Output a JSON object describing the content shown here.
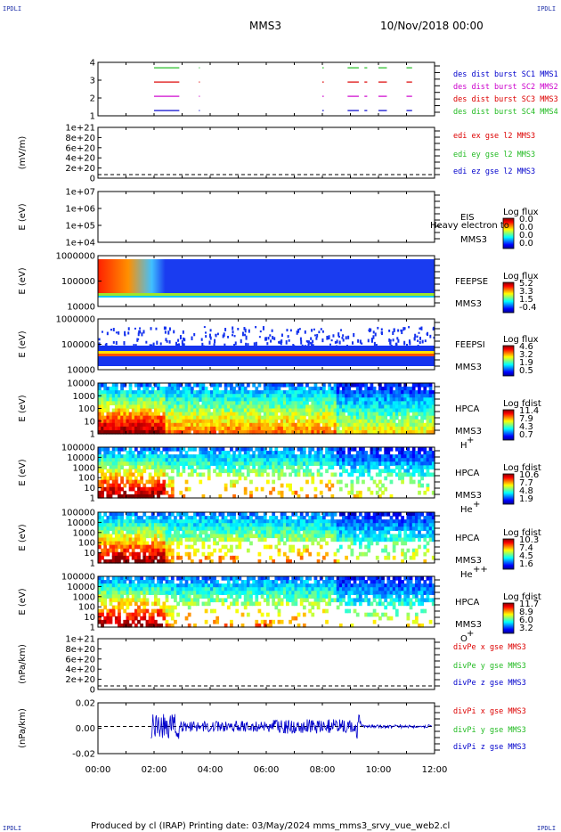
{
  "header": {
    "corner_label": "IPDLI",
    "spacecraft": "MMS3",
    "date": "10/Nov/2018 00:00"
  },
  "footer": {
    "text": "Produced by cl (IRAP)   Printing date: 03/May/2024   mms_mms3_srvy_vue_web2.cl"
  },
  "colors": {
    "red": "#dd0000",
    "green": "#22bb22",
    "blue": "#0000cc",
    "magenta": "#cc00cc"
  },
  "chart_data": {
    "type": "heatmap",
    "x_tick_labels": [
      "00:00",
      "02:00",
      "04:00",
      "06:00",
      "08:00",
      "10:00",
      "12:00"
    ],
    "xlim_hours": [
      0,
      12
    ],
    "panels": [
      {
        "id": "burst",
        "type": "timeline",
        "y_ticks": [
          "4",
          "3",
          "2",
          "1"
        ],
        "legend": [
          {
            "text": "des dist burst SC1 MMS1",
            "color": "#0000cc"
          },
          {
            "text": "des dist burst SC2 MMS2",
            "color": "#cc00cc"
          },
          {
            "text": "des dist burst SC3 MMS3",
            "color": "#dd0000"
          },
          {
            "text": "des dist burst SC4 MMS4",
            "color": "#22bb22"
          }
        ]
      },
      {
        "id": "edi",
        "type": "line",
        "ylabel": "(mV/m)",
        "y_ticks": [
          "1e+21",
          "8e+20",
          "6e+20",
          "4e+20",
          "2e+20",
          "0"
        ],
        "legend": [
          {
            "text": "edi ex gse l2 MMS3",
            "color": "#dd0000"
          },
          {
            "text": "edi ey gse l2 MMS3",
            "color": "#22bb22"
          },
          {
            "text": "edi ez gse l2 MMS3",
            "color": "#0000cc"
          }
        ]
      },
      {
        "id": "eis",
        "type": "heatmap",
        "ylabel": "E (eV)",
        "y_ticks": [
          "1e+07",
          "1e+06",
          "1e+05",
          "1e+04"
        ],
        "instrument": "EIS",
        "spacecraft": "MMS3",
        "overlay_text": "Heavy electron to",
        "cb_title": "Log flux",
        "cb_ticks": [
          "0.0",
          "0.0",
          "0.0",
          "0.0"
        ]
      },
      {
        "id": "feepse",
        "type": "heatmap",
        "ylabel": "E (eV)",
        "y_ticks": [
          "1000000",
          "100000",
          "10000"
        ],
        "instrument": "FEEPSE",
        "spacecraft": "MMS3",
        "cb_title": "Log flux",
        "cb_ticks": [
          "5.2",
          "3.3",
          "1.5",
          "-0.4"
        ]
      },
      {
        "id": "feepsi",
        "type": "heatmap",
        "ylabel": "E (eV)",
        "y_ticks": [
          "1000000",
          "100000",
          "10000"
        ],
        "instrument": "FEEPSI",
        "spacecraft": "MMS3",
        "cb_title": "Log flux",
        "cb_ticks": [
          "4.6",
          "3.2",
          "1.9",
          "0.5"
        ]
      },
      {
        "id": "hpca_h",
        "type": "heatmap",
        "ylabel": "E (eV)",
        "y_ticks": [
          "10000",
          "1000",
          "100",
          "10",
          "1"
        ],
        "instrument": "HPCA",
        "spacecraft": "MMS3",
        "species": "H",
        "charge": "+",
        "cb_title": "Log fdist",
        "cb_ticks": [
          "11.4",
          "7.9",
          "4.3",
          "0.7"
        ]
      },
      {
        "id": "hpca_he",
        "type": "heatmap",
        "ylabel": "E (eV)",
        "y_ticks": [
          "100000",
          "10000",
          "1000",
          "100",
          "10",
          "1"
        ],
        "instrument": "HPCA",
        "spacecraft": "MMS3",
        "species": "He",
        "charge": "+",
        "cb_title": "Log fdist",
        "cb_ticks": [
          "10.6",
          "7.7",
          "4.8",
          "1.9"
        ]
      },
      {
        "id": "hpca_hepp",
        "type": "heatmap",
        "ylabel": "E (eV)",
        "y_ticks": [
          "100000",
          "10000",
          "1000",
          "100",
          "10",
          "1"
        ],
        "instrument": "HPCA",
        "spacecraft": "MMS3",
        "species": "He",
        "charge": "++",
        "cb_title": "Log fdist",
        "cb_ticks": [
          "10.3",
          "7.4",
          "4.5",
          "1.6"
        ]
      },
      {
        "id": "hpca_o",
        "type": "heatmap",
        "ylabel": "E (eV)",
        "y_ticks": [
          "100000",
          "10000",
          "1000",
          "100",
          "10",
          "1"
        ],
        "instrument": "HPCA",
        "spacecraft": "MMS3",
        "species": "O",
        "charge": "+",
        "cb_title": "Log fdist",
        "cb_ticks": [
          "11.7",
          "8.9",
          "6.0",
          "3.2"
        ]
      },
      {
        "id": "divpe",
        "type": "line",
        "ylabel": "(nPa/km)",
        "y_ticks": [
          "1e+21",
          "8e+20",
          "6e+20",
          "4e+20",
          "2e+20",
          "0"
        ],
        "legend": [
          {
            "text": "divPe x gse MMS3",
            "color": "#dd0000"
          },
          {
            "text": "divPe y gse MMS3",
            "color": "#22bb22"
          },
          {
            "text": "divPe z gse MMS3",
            "color": "#0000cc"
          }
        ]
      },
      {
        "id": "divpi",
        "type": "line",
        "ylabel": "(nPa/km)",
        "y_ticks": [
          "0.02",
          "0.00",
          "-0.02"
        ],
        "legend": [
          {
            "text": "divPi x gse MMS3",
            "color": "#dd0000"
          },
          {
            "text": "divPi y gse MMS3",
            "color": "#22bb22"
          },
          {
            "text": "divPi z gse MMS3",
            "color": "#0000cc"
          }
        ]
      }
    ]
  }
}
